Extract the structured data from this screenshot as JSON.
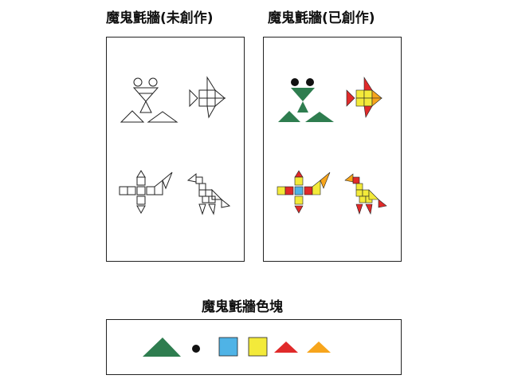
{
  "titles": {
    "left": "魔鬼氈牆(未創作)",
    "right": "魔鬼氈牆(已創作)",
    "pieces": "魔鬼氈牆色塊"
  },
  "colors": {
    "green": "#2e7d4f",
    "black": "#111111",
    "blue": "#4fb3e6",
    "yellow": "#f3ea3a",
    "red": "#e02a2a",
    "orange": "#f7a51c",
    "outline": "#222222"
  },
  "figures": [
    "frog",
    "fish",
    "airplane",
    "bird"
  ],
  "pieces": [
    "green-triangle",
    "black-circle",
    "blue-square",
    "yellow-square",
    "red-triangle",
    "orange-triangle"
  ]
}
